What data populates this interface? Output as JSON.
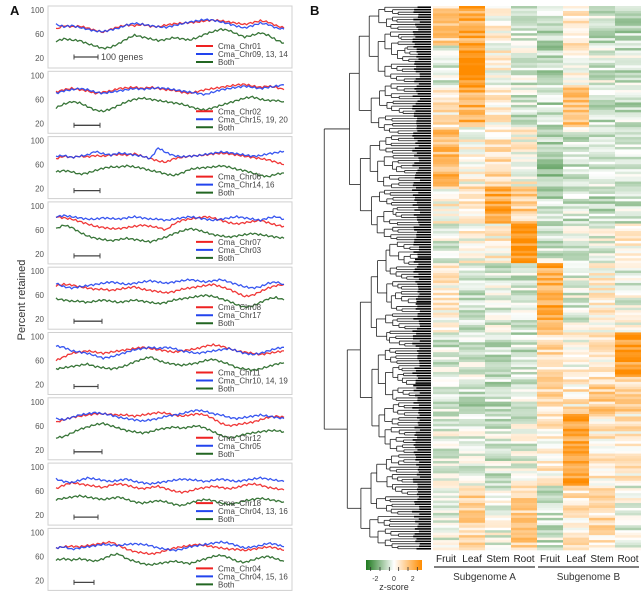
{
  "chart_data": [
    {
      "type": "line",
      "panel": "A",
      "ylabel": "Percent retained",
      "yticks": [
        20,
        60,
        100
      ],
      "ylim": [
        0,
        100
      ],
      "scale_bar_label": "100 genes",
      "series_colors": {
        "a": "#ee2222",
        "b": "#2244ee",
        "both": "#226622"
      },
      "subplots": [
        {
          "legend": [
            "Cma_Chr01",
            "Cma_Chr09, 13, 14",
            "Both"
          ],
          "a": [
            68,
            74,
            72,
            73,
            70,
            66,
            63,
            68,
            72,
            75,
            74,
            76,
            73,
            72,
            75,
            77,
            78,
            79,
            80,
            82,
            83,
            82,
            80,
            78,
            76,
            79,
            82,
            80,
            74,
            70
          ],
          "b": [
            76,
            72,
            74,
            71,
            68,
            65,
            64,
            67,
            70,
            75,
            78,
            76,
            74,
            72,
            71,
            74,
            77,
            80,
            82,
            84,
            83,
            80,
            77,
            73,
            70,
            74,
            78,
            76,
            70,
            68
          ],
          "both": [
            48,
            52,
            50,
            49,
            44,
            40,
            36,
            38,
            44,
            52,
            58,
            55,
            52,
            49,
            51,
            54,
            52,
            50,
            54,
            60,
            64,
            68,
            66,
            60,
            55,
            58,
            62,
            58,
            50,
            45
          ]
        },
        {
          "legend": [
            "Cma_Chr02",
            "Cma_Chr15, 19, 20",
            "Both"
          ],
          "a": [
            72,
            76,
            78,
            76,
            74,
            70,
            72,
            74,
            78,
            79,
            80,
            78,
            80,
            78,
            76,
            75,
            72,
            70,
            73,
            76,
            78,
            80,
            82,
            84,
            85,
            82,
            80,
            82,
            80,
            76
          ],
          "b": [
            70,
            74,
            76,
            78,
            76,
            72,
            70,
            72,
            74,
            76,
            78,
            77,
            78,
            79,
            78,
            76,
            74,
            72,
            70,
            68,
            72,
            76,
            78,
            80,
            82,
            80,
            78,
            80,
            82,
            84
          ],
          "both": [
            46,
            52,
            56,
            54,
            48,
            42,
            40,
            44,
            50,
            56,
            60,
            62,
            60,
            58,
            56,
            54,
            52,
            48,
            44,
            42,
            46,
            50,
            54,
            58,
            62,
            64,
            60,
            58,
            58,
            56
          ]
        },
        {
          "legend": [
            "Cma_Chr06",
            "Cma_Chr14, 16",
            "Both"
          ],
          "a": [
            70,
            74,
            72,
            74,
            73,
            75,
            74,
            76,
            77,
            76,
            78,
            74,
            70,
            66,
            64,
            70,
            72,
            74,
            75,
            76,
            78,
            79,
            78,
            76,
            74,
            72,
            70,
            68,
            64,
            60
          ],
          "b": [
            74,
            75,
            72,
            74,
            76,
            82,
            78,
            76,
            79,
            78,
            76,
            74,
            70,
            88,
            80,
            75,
            73,
            74,
            75,
            77,
            79,
            81,
            80,
            78,
            76,
            74,
            75,
            78,
            80,
            82
          ],
          "both": [
            48,
            50,
            48,
            44,
            46,
            50,
            54,
            56,
            56,
            58,
            56,
            54,
            50,
            48,
            44,
            42,
            46,
            52,
            54,
            55,
            56,
            58,
            56,
            52,
            50,
            46,
            42,
            40,
            44,
            46
          ]
        },
        {
          "legend": [
            "Cma_Chr07",
            "Cma_Chr03",
            "Both"
          ],
          "a": [
            82,
            80,
            78,
            74,
            70,
            66,
            64,
            62,
            62,
            64,
            66,
            68,
            66,
            64,
            60,
            70,
            76,
            78,
            80,
            82,
            80,
            76,
            72,
            70,
            72,
            74,
            76,
            72,
            68,
            66
          ],
          "b": [
            82,
            84,
            82,
            80,
            78,
            78,
            80,
            79,
            78,
            80,
            82,
            80,
            78,
            78,
            76,
            78,
            80,
            82,
            80,
            78,
            76,
            78,
            80,
            82,
            80,
            78,
            76,
            80,
            82,
            78
          ],
          "both": [
            62,
            68,
            64,
            56,
            50,
            46,
            44,
            42,
            44,
            46,
            44,
            42,
            40,
            44,
            48,
            54,
            58,
            62,
            60,
            56,
            52,
            50,
            48,
            50,
            52,
            54,
            52,
            50,
            48,
            46
          ]
        },
        {
          "legend": [
            "Cma_Chr08",
            "Cma_Chr17",
            "Both"
          ],
          "a": [
            76,
            78,
            77,
            74,
            72,
            70,
            70,
            68,
            70,
            72,
            74,
            70,
            68,
            66,
            64,
            66,
            70,
            72,
            74,
            76,
            78,
            74,
            70,
            64,
            58,
            60,
            66,
            72,
            76,
            78
          ],
          "b": [
            80,
            74,
            72,
            74,
            76,
            78,
            80,
            82,
            80,
            78,
            80,
            82,
            84,
            82,
            80,
            82,
            84,
            86,
            84,
            82,
            84,
            86,
            82,
            78,
            74,
            72,
            74,
            80,
            82,
            78
          ],
          "both": [
            54,
            52,
            50,
            50,
            48,
            50,
            52,
            50,
            48,
            50,
            52,
            50,
            48,
            46,
            48,
            52,
            54,
            56,
            58,
            60,
            58,
            54,
            50,
            44,
            40,
            42,
            48,
            54,
            56,
            52
          ]
        },
        {
          "legend": [
            "Cma_Chr11",
            "Cma_Chr10, 14, 19",
            "Both"
          ],
          "a": [
            60,
            66,
            72,
            74,
            76,
            74,
            72,
            74,
            76,
            78,
            80,
            82,
            80,
            78,
            76,
            74,
            76,
            78,
            80,
            84,
            86,
            84,
            80,
            76,
            74,
            72,
            70,
            72,
            74,
            76
          ],
          "b": [
            84,
            82,
            76,
            74,
            72,
            68,
            64,
            66,
            70,
            74,
            78,
            80,
            82,
            80,
            82,
            80,
            76,
            74,
            72,
            74,
            76,
            78,
            80,
            76,
            72,
            70,
            72,
            76,
            80,
            82
          ],
          "both": [
            46,
            48,
            50,
            52,
            54,
            50,
            48,
            46,
            48,
            52,
            58,
            62,
            66,
            60,
            56,
            54,
            52,
            54,
            56,
            60,
            62,
            58,
            54,
            48,
            46,
            44,
            46,
            50,
            54,
            56
          ]
        },
        {
          "legend": [
            "Cma_Chr12",
            "Cma_Chr05",
            "Both"
          ],
          "a": [
            66,
            70,
            74,
            76,
            78,
            80,
            80,
            79,
            78,
            78,
            76,
            78,
            80,
            82,
            81,
            78,
            76,
            78,
            80,
            78,
            72,
            64,
            60,
            62,
            64,
            66,
            70,
            74,
            76,
            74
          ],
          "b": [
            72,
            70,
            74,
            78,
            80,
            82,
            80,
            78,
            74,
            72,
            70,
            68,
            70,
            72,
            76,
            78,
            80,
            84,
            86,
            84,
            80,
            78,
            74,
            72,
            74,
            76,
            78,
            76,
            74,
            72
          ],
          "both": [
            40,
            42,
            48,
            54,
            58,
            62,
            64,
            60,
            56,
            52,
            50,
            48,
            50,
            54,
            56,
            58,
            56,
            58,
            60,
            56,
            50,
            44,
            40,
            42,
            46,
            48,
            50,
            52,
            52,
            50
          ]
        },
        {
          "legend": [
            "Cma_Chr18",
            "Cma_Chr04, 13, 16",
            "Both"
          ],
          "a": [
            64,
            70,
            74,
            72,
            70,
            68,
            66,
            70,
            72,
            70,
            66,
            64,
            66,
            68,
            64,
            60,
            58,
            60,
            64,
            66,
            68,
            66,
            64,
            66,
            70,
            72,
            70,
            66,
            64,
            62
          ],
          "b": [
            80,
            76,
            74,
            78,
            82,
            80,
            78,
            76,
            78,
            80,
            76,
            74,
            72,
            74,
            76,
            78,
            80,
            79,
            78,
            76,
            78,
            80,
            78,
            76,
            78,
            80,
            82,
            80,
            78,
            76
          ],
          "both": [
            46,
            48,
            50,
            52,
            50,
            48,
            46,
            48,
            50,
            46,
            42,
            40,
            42,
            44,
            42,
            38,
            36,
            40,
            44,
            46,
            44,
            40,
            38,
            40,
            44,
            46,
            48,
            46,
            44,
            42
          ]
        },
        {
          "legend": [
            "Cma_Chr04",
            "Cma_Chr04, 15, 16",
            "Both"
          ],
          "a": [
            74,
            76,
            77,
            76,
            78,
            80,
            82,
            84,
            78,
            72,
            68,
            66,
            64,
            66,
            70,
            74,
            76,
            78,
            80,
            78,
            76,
            74,
            72,
            72,
            70,
            72,
            74,
            76,
            74,
            70
          ],
          "b": [
            74,
            76,
            72,
            74,
            76,
            78,
            80,
            79,
            78,
            80,
            81,
            80,
            78,
            74,
            72,
            70,
            72,
            76,
            78,
            80,
            82,
            84,
            82,
            78,
            74,
            76,
            78,
            82,
            80,
            76
          ],
          "both": [
            54,
            56,
            54,
            56,
            54,
            52,
            56,
            62,
            64,
            56,
            52,
            48,
            46,
            48,
            50,
            52,
            50,
            48,
            52,
            56,
            60,
            62,
            58,
            52,
            50,
            54,
            58,
            60,
            56,
            52
          ]
        }
      ]
    },
    {
      "type": "heatmap",
      "panel": "B",
      "columns": [
        "Fruit",
        "Leaf",
        "Stem",
        "Root",
        "Fruit",
        "Leaf",
        "Stem",
        "Root"
      ],
      "groups": [
        {
          "label": "Subgenome A",
          "columns": [
            0,
            1,
            2,
            3
          ]
        },
        {
          "label": "Subgenome B",
          "columns": [
            4,
            5,
            6,
            7
          ]
        }
      ],
      "row_dendrogram": true,
      "colorbar": {
        "title": "z-score",
        "ticks": [
          -2,
          0,
          2
        ],
        "range": [
          -3,
          3
        ],
        "low_color": "#1f7a1f",
        "mid_color": "#ffffff",
        "high_color": "#ff8c00"
      },
      "blocks": [
        {
          "rows": [
            0,
            0.07
          ],
          "pattern": [
            1.2,
            2.2,
            0.3,
            -0.6,
            -0.8,
            0.4,
            -0.6,
            -0.9
          ]
        },
        {
          "rows": [
            0.07,
            0.15
          ],
          "pattern": [
            -0.6,
            2.8,
            0.2,
            -0.4,
            -0.9,
            0.4,
            -0.5,
            -0.6
          ]
        },
        {
          "rows": [
            0.15,
            0.22
          ],
          "pattern": [
            0.6,
            2.0,
            0.4,
            -0.6,
            -0.8,
            1.6,
            -0.8,
            -0.7
          ]
        },
        {
          "rows": [
            0.22,
            0.33
          ],
          "pattern": [
            1.8,
            0.2,
            0.8,
            0.2,
            -1.2,
            -0.6,
            -0.7,
            -0.6
          ]
        },
        {
          "rows": [
            0.33,
            0.4
          ],
          "pattern": [
            0.3,
            0.6,
            2.2,
            1.2,
            -0.8,
            -0.6,
            -0.9,
            -0.5
          ]
        },
        {
          "rows": [
            0.4,
            0.47
          ],
          "pattern": [
            -0.3,
            0.2,
            0.4,
            2.8,
            -0.6,
            -0.4,
            -0.2,
            0.4
          ]
        },
        {
          "rows": [
            0.47,
            0.6
          ],
          "pattern": [
            0.4,
            -0.5,
            -0.4,
            -0.5,
            2.2,
            -0.4,
            0.4,
            -0.2
          ]
        },
        {
          "rows": [
            0.6,
            0.68
          ],
          "pattern": [
            -0.6,
            -0.5,
            -0.6,
            -0.6,
            0.8,
            0.2,
            0.4,
            2.6
          ]
        },
        {
          "rows": [
            0.68,
            0.75
          ],
          "pattern": [
            -0.6,
            -0.8,
            -0.7,
            -0.5,
            1.0,
            0.6,
            1.2,
            1.0
          ]
        },
        {
          "rows": [
            0.75,
            0.88
          ],
          "pattern": [
            -0.3,
            -0.3,
            -0.5,
            -0.3,
            0.4,
            2.4,
            0.5,
            0.6
          ]
        },
        {
          "rows": [
            0.88,
            1.0
          ],
          "pattern": [
            -0.4,
            1.0,
            -0.2,
            1.2,
            -0.6,
            0.6,
            0.8,
            -0.2
          ]
        }
      ]
    }
  ],
  "labels": {
    "panel_a": "A",
    "panel_b": "B"
  }
}
